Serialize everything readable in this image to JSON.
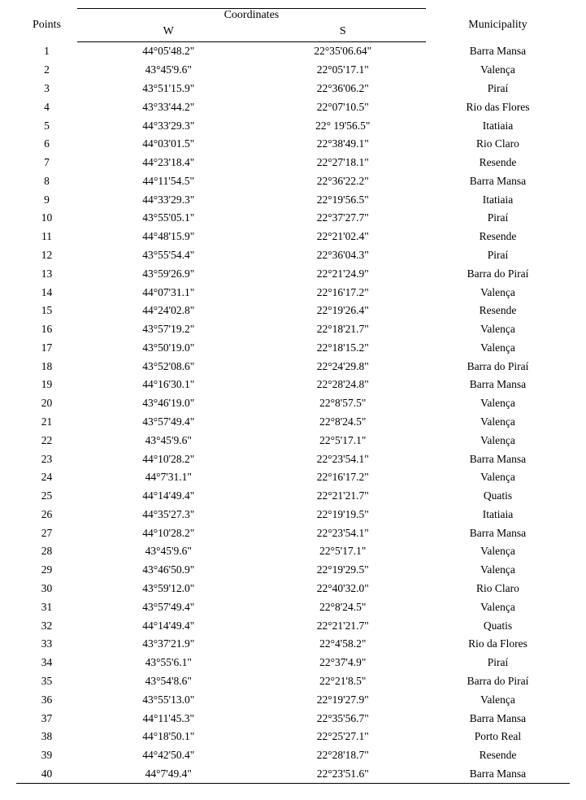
{
  "table": {
    "headers": {
      "points": "Points",
      "coordinates": "Coordinates",
      "w": "W",
      "s": "S",
      "municipality": "Municipality"
    },
    "rows": [
      {
        "point": "1",
        "w": "44°05'48.2\"",
        "s": "22°35'06.64\"",
        "mun": "Barra Mansa"
      },
      {
        "point": "2",
        "w": "43°45'9.6\"",
        "s": "22°05'17.1\"",
        "mun": "Valença"
      },
      {
        "point": "3",
        "w": "43°51'15.9\"",
        "s": "22°36'06.2\"",
        "mun": "Piraí"
      },
      {
        "point": "4",
        "w": "43°33'44.2\"",
        "s": "22°07'10.5\"",
        "mun": "Rio das Flores"
      },
      {
        "point": "5",
        "w": "44°33'29.3\"",
        "s": "22° 19'56.5\"",
        "mun": "Itatiaia"
      },
      {
        "point": "6",
        "w": "44°03'01.5\"",
        "s": "22°38'49.1\"",
        "mun": "Rio Claro"
      },
      {
        "point": "7",
        "w": "44°23'18.4\"",
        "s": "22°27'18.1\"",
        "mun": "Resende"
      },
      {
        "point": "8",
        "w": "44°11'54.5\"",
        "s": "22°36'22.2\"",
        "mun": "Barra Mansa"
      },
      {
        "point": "9",
        "w": "44°33'29.3\"",
        "s": "22°19'56.5\"",
        "mun": "Itatiaia"
      },
      {
        "point": "10",
        "w": "43°55'05.1\"",
        "s": "22°37'27.7\"",
        "mun": "Piraí"
      },
      {
        "point": "11",
        "w": "44°48'15.9\"",
        "s": "22°21'02.4\"",
        "mun": "Resende"
      },
      {
        "point": "12",
        "w": "43°55'54.4\"",
        "s": "22°36'04.3\"",
        "mun": "Piraí"
      },
      {
        "point": "13",
        "w": "43°59'26.9\"",
        "s": "22°21'24.9\"",
        "mun": "Barra do Piraí"
      },
      {
        "point": "14",
        "w": "44°07'31.1\"",
        "s": "22°16'17.2\"",
        "mun": "Valença"
      },
      {
        "point": "15",
        "w": "44°24'02.8\"",
        "s": "22°19'26.4\"",
        "mun": "Resende"
      },
      {
        "point": "16",
        "w": "43°57'19.2\"",
        "s": "22°18'21.7\"",
        "mun": "Valença"
      },
      {
        "point": "17",
        "w": "43°50'19.0\"",
        "s": "22°18'15.2\"",
        "mun": "Valença"
      },
      {
        "point": "18",
        "w": "43°52'08.6\"",
        "s": "22°24'29.8\"",
        "mun": "Barra do Piraí"
      },
      {
        "point": "19",
        "w": "44°16'30.1\"",
        "s": "22°28'24.8\"",
        "mun": "Barra Mansa"
      },
      {
        "point": "20",
        "w": "43°46'19.0\"",
        "s": "22°8'57.5\"",
        "mun": "Valença"
      },
      {
        "point": "21",
        "w": "43°57'49.4\"",
        "s": "22°8'24.5\"",
        "mun": "Valença"
      },
      {
        "point": "22",
        "w": "43°45'9.6\"",
        "s": "22°5'17.1\"",
        "mun": "Valença"
      },
      {
        "point": "23",
        "w": "44°10'28.2\"",
        "s": "22°23'54.1\"",
        "mun": "Barra Mansa"
      },
      {
        "point": "24",
        "w": "44°7'31.1\"",
        "s": "22°16'17.2\"",
        "mun": "Valença"
      },
      {
        "point": "25",
        "w": "44°14'49.4\"",
        "s": "22°21'21.7\"",
        "mun": "Quatis"
      },
      {
        "point": "26",
        "w": "44°35'27.3\"",
        "s": "22°19'19.5\"",
        "mun": "Itatiaia"
      },
      {
        "point": "27",
        "w": "44°10'28.2\"",
        "s": "22°23'54.1\"",
        "mun": "Barra Mansa"
      },
      {
        "point": "28",
        "w": "43°45'9.6\"",
        "s": "22°5'17.1\"",
        "mun": "Valença"
      },
      {
        "point": "29",
        "w": "43°46'50.9\"",
        "s": "22°19'29.5\"",
        "mun": "Valença"
      },
      {
        "point": "30",
        "w": "43°59'12.0\"",
        "s": "22°40'32.0\"",
        "mun": "Rio Claro"
      },
      {
        "point": "31",
        "w": "43°57'49.4\"",
        "s": "22°8'24.5\"",
        "mun": "Valença"
      },
      {
        "point": "32",
        "w": "44°14'49.4\"",
        "s": "22°21'21.7\"",
        "mun": "Quatis"
      },
      {
        "point": "33",
        "w": "43°37'21.9\"",
        "s": "22°4'58.2\"",
        "mun": "Rio da Flores"
      },
      {
        "point": "34",
        "w": "43°55'6.1\"",
        "s": "22°37'4.9\"",
        "mun": "Piraí"
      },
      {
        "point": "35",
        "w": "43°54'8.6\"",
        "s": "22°21'8.5\"",
        "mun": "Barra do Piraí"
      },
      {
        "point": "36",
        "w": "43°55'13.0\"",
        "s": "22°19'27.9\"",
        "mun": "Valença"
      },
      {
        "point": "37",
        "w": "44°11'45.3\"",
        "s": "22°35'56.7\"",
        "mun": "Barra Mansa"
      },
      {
        "point": "38",
        "w": "44°18'50.1\"",
        "s": "22°25'27.1\"",
        "mun": "Porto Real"
      },
      {
        "point": "39",
        "w": "44°42'50.4\"",
        "s": "22°28'18.7\"",
        "mun": "Resende"
      },
      {
        "point": "40",
        "w": "44°7'49.4\"",
        "s": "22°23'51.6\"",
        "mun": "Barra Mansa"
      }
    ]
  }
}
